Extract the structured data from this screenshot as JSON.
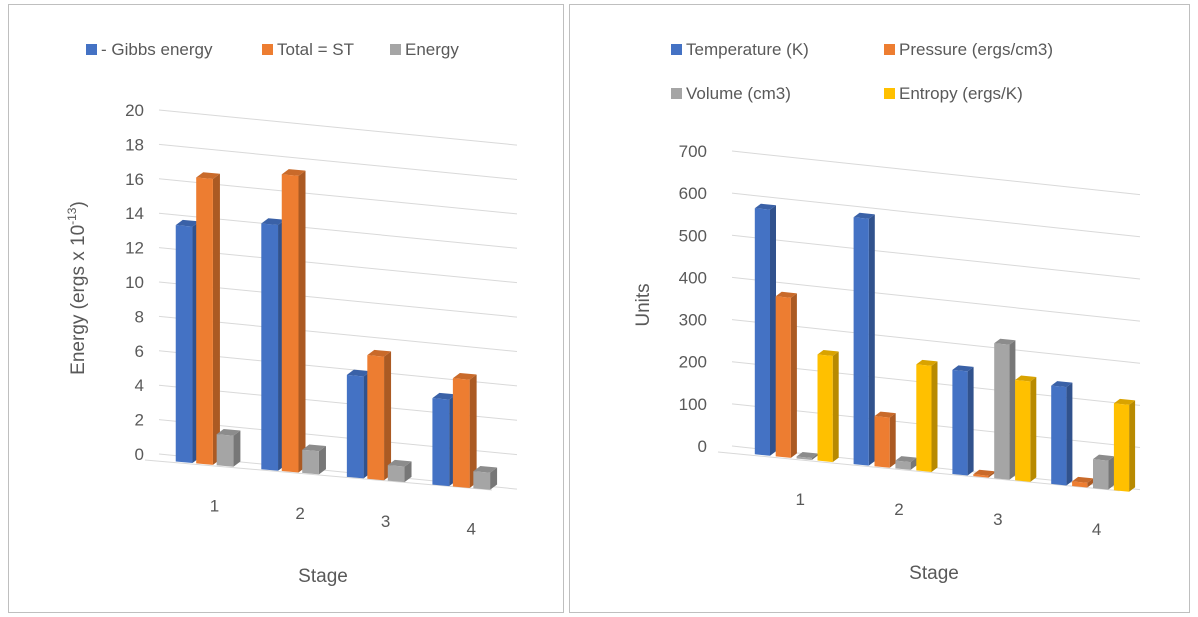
{
  "chart_data": [
    {
      "type": "bar",
      "title": "",
      "xlabel": "Stage",
      "ylabel_main": "Energy (ergs x 10",
      "ylabel_exponent": "-13",
      "ylabel_close": ")",
      "categories": [
        "1",
        "2",
        "3",
        "4"
      ],
      "ylim": [
        0,
        20
      ],
      "y_ticks": [
        "0",
        "2",
        "4",
        "6",
        "8",
        "10",
        "12",
        "14",
        "16",
        "18",
        "20"
      ],
      "legend_position": "top",
      "series": [
        {
          "name": "- Gibbs  energy",
          "color": "#4472c4",
          "values": [
            15.3,
            15.9,
            6.6,
            5.6
          ]
        },
        {
          "name": "Total = ST",
          "color": "#ed7d31",
          "values": [
            18.5,
            19.2,
            8.0,
            7.0
          ]
        },
        {
          "name": "Energy",
          "color": "#a5a5a5",
          "values": [
            2.0,
            1.5,
            1.0,
            1.1
          ]
        }
      ]
    },
    {
      "type": "bar",
      "title": "",
      "xlabel": "Stage",
      "ylabel": "Units",
      "categories": [
        "1",
        "2",
        "3",
        "4"
      ],
      "ylim": [
        0,
        700
      ],
      "y_ticks": [
        "0",
        "100",
        "200",
        "300",
        "400",
        "500",
        "600",
        "700"
      ],
      "legend_position": "top",
      "series": [
        {
          "name": "Temperature (K)",
          "color": "#4472c4",
          "values": [
            638,
            640,
            270,
            255
          ]
        },
        {
          "name": "Pressure (ergs/cm3)",
          "color": "#ed7d31",
          "values": [
            415,
            130,
            5,
            12
          ]
        },
        {
          "name": "Volume (cm3)",
          "color": "#a5a5a5",
          "values": [
            5,
            20,
            350,
            75
          ]
        },
        {
          "name": "Entropy (ergs/K)",
          "color": "#ffc000",
          "values": [
            275,
            275,
            260,
            225
          ]
        }
      ]
    }
  ]
}
